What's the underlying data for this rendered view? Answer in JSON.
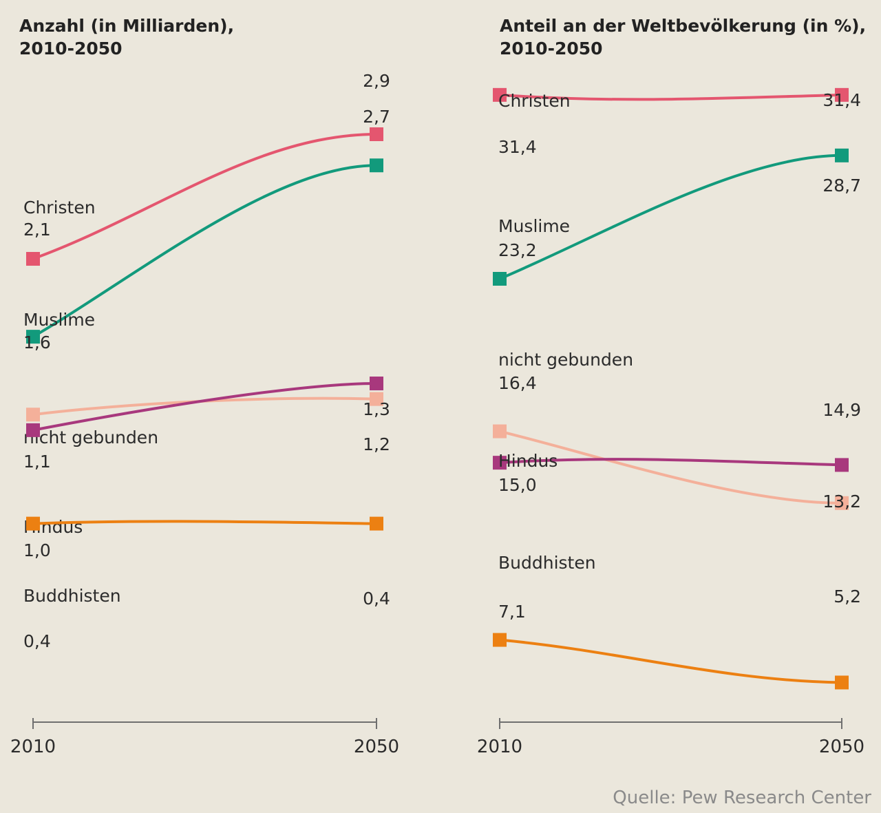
{
  "chart_data": [
    {
      "type": "line",
      "title_lines": [
        "Anzahl (in Milliarden),",
        "2010-2050"
      ],
      "x": [
        "2010",
        "2050"
      ],
      "series": [
        {
          "name": "Christen",
          "color": "#e4566f",
          "values": [
            2.1,
            2.9
          ],
          "labels": [
            "2,1",
            "2,9"
          ]
        },
        {
          "name": "Muslime",
          "color": "#129a7c",
          "values": [
            1.6,
            2.7
          ],
          "labels": [
            "1,6",
            "2,7"
          ]
        },
        {
          "name": "nicht gebunden",
          "color": "#f4b09a",
          "values": [
            1.1,
            1.2
          ],
          "labels": [
            "1,1",
            "1,2"
          ]
        },
        {
          "name": "Hindus",
          "color": "#a8387d",
          "values": [
            1.0,
            1.3
          ],
          "labels": [
            "1,0",
            "1,3"
          ]
        },
        {
          "name": "Buddhisten",
          "color": "#ec8012",
          "values": [
            0.4,
            0.4
          ],
          "labels": [
            "0,4",
            "0,4"
          ]
        }
      ]
    },
    {
      "type": "line",
      "title_lines": [
        "Anteil an der Weltbevölkerung (in %),",
        "2010-2050"
      ],
      "x": [
        "2010",
        "2050"
      ],
      "series": [
        {
          "name": "Christen",
          "color": "#e4566f",
          "values": [
            31.4,
            31.4
          ],
          "labels": [
            "31,4",
            "31,4"
          ]
        },
        {
          "name": "Muslime",
          "color": "#129a7c",
          "values": [
            23.2,
            28.7
          ],
          "labels": [
            "23,2",
            "28,7"
          ]
        },
        {
          "name": "nicht gebunden",
          "color": "#f4b09a",
          "values": [
            16.4,
            13.2
          ],
          "labels": [
            "16,4",
            "13,2"
          ]
        },
        {
          "name": "Hindus",
          "color": "#a8387d",
          "values": [
            15.0,
            14.9
          ],
          "labels": [
            "15,0",
            "14,9"
          ]
        },
        {
          "name": "Buddhisten",
          "color": "#ec8012",
          "values": [
            7.1,
            5.2
          ],
          "labels": [
            "7,1",
            "5,2"
          ]
        }
      ]
    }
  ],
  "source": "Quelle: Pew Research Center"
}
